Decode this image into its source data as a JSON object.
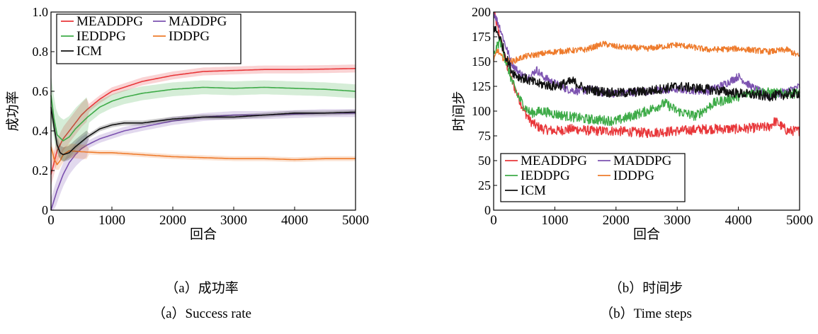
{
  "colors": {
    "MEADDPG": "#e8373a",
    "MADDPG": "#7c52b0",
    "IEDDPG": "#3eab48",
    "IDDPG": "#ee7b2c",
    "ICM": "#111111"
  },
  "chart_data": [
    {
      "type": "line",
      "title": "",
      "xlabel": "回合",
      "ylabel": "成功率",
      "xlim": [
        0,
        5000
      ],
      "ylim": [
        0,
        1.0
      ],
      "xticks": [
        0,
        1000,
        2000,
        3000,
        4000,
        5000
      ],
      "yticks": [
        0,
        0.2,
        0.4,
        0.6,
        0.8,
        1.0
      ],
      "ytick_labels": [
        "0",
        "0.2",
        "0.4",
        "0.6",
        "0.8",
        "1.0"
      ],
      "legend": {
        "location": "top-left",
        "columns": 2,
        "entries": [
          "MEADDPG",
          "MADDPG",
          "IEDDPG",
          "IDDPG",
          "ICM"
        ]
      },
      "series": [
        {
          "name": "MEADDPG",
          "band": 0.02,
          "x": [
            0,
            100,
            200,
            300,
            400,
            500,
            600,
            800,
            1000,
            1200,
            1500,
            2000,
            2500,
            3000,
            3500,
            4000,
            4500,
            5000
          ],
          "y": [
            0.18,
            0.3,
            0.36,
            0.4,
            0.44,
            0.48,
            0.51,
            0.56,
            0.6,
            0.62,
            0.65,
            0.68,
            0.7,
            0.705,
            0.71,
            0.71,
            0.712,
            0.715
          ]
        },
        {
          "name": "MADDPG",
          "band": 0.02,
          "x": [
            0,
            100,
            200,
            300,
            400,
            500,
            600,
            800,
            1000,
            1200,
            1500,
            2000,
            2500,
            3000,
            3500,
            4000,
            4500,
            5000
          ],
          "y": [
            0.0,
            0.1,
            0.18,
            0.24,
            0.28,
            0.31,
            0.33,
            0.36,
            0.38,
            0.4,
            0.42,
            0.45,
            0.47,
            0.48,
            0.48,
            0.485,
            0.49,
            0.49
          ]
        },
        {
          "name": "IEDDPG",
          "band": 0.035,
          "x": [
            0,
            50,
            100,
            200,
            300,
            400,
            500,
            600,
            800,
            1000,
            1200,
            1500,
            2000,
            2500,
            3000,
            3500,
            4000,
            4500,
            5000
          ],
          "y": [
            0.58,
            0.46,
            0.38,
            0.35,
            0.37,
            0.41,
            0.44,
            0.47,
            0.52,
            0.55,
            0.57,
            0.59,
            0.61,
            0.62,
            0.615,
            0.62,
            0.615,
            0.61,
            0.6
          ]
        },
        {
          "name": "IDDPG",
          "band": 0.012,
          "x": [
            0,
            50,
            100,
            150,
            200,
            300,
            500,
            800,
            1000,
            1500,
            2000,
            2500,
            3000,
            3500,
            4000,
            4500,
            5000
          ],
          "y": [
            0.32,
            0.26,
            0.23,
            0.25,
            0.28,
            0.3,
            0.295,
            0.29,
            0.29,
            0.28,
            0.27,
            0.265,
            0.26,
            0.26,
            0.255,
            0.26,
            0.26
          ]
        },
        {
          "name": "ICM",
          "band": 0.012,
          "x": [
            0,
            50,
            100,
            150,
            200,
            300,
            400,
            600,
            800,
            1000,
            1200,
            1500,
            2000,
            2500,
            3000,
            3500,
            4000,
            4500,
            5000
          ],
          "y": [
            0.52,
            0.42,
            0.33,
            0.29,
            0.28,
            0.29,
            0.32,
            0.37,
            0.41,
            0.43,
            0.44,
            0.44,
            0.46,
            0.47,
            0.47,
            0.48,
            0.49,
            0.49,
            0.495
          ]
        }
      ]
    },
    {
      "type": "line",
      "title": "",
      "xlabel": "回合",
      "ylabel": "时间步",
      "xlim": [
        0,
        5000
      ],
      "ylim": [
        0,
        200
      ],
      "xticks": [
        0,
        1000,
        2000,
        3000,
        4000,
        5000
      ],
      "yticks": [
        0,
        25,
        50,
        75,
        100,
        125,
        150,
        175,
        200
      ],
      "ytick_labels": [
        "0",
        "25",
        "50",
        "75",
        "100",
        "125",
        "150",
        "175",
        "200"
      ],
      "legend": {
        "location": "bottom-left",
        "columns": 2,
        "entries": [
          "MEADDPG",
          "MADDPG",
          "IEDDPG",
          "IDDPG",
          "ICM"
        ]
      },
      "series": [
        {
          "name": "MEADDPG",
          "noise": 5,
          "x": [
            0,
            100,
            200,
            300,
            400,
            500,
            600,
            700,
            800,
            1000,
            1300,
            1600,
            2000,
            2500,
            3000,
            3500,
            4000,
            4500,
            4600,
            4800,
            5000
          ],
          "y": [
            200,
            175,
            150,
            130,
            115,
            100,
            90,
            85,
            82,
            80,
            82,
            80,
            80,
            78,
            80,
            82,
            82,
            84,
            90,
            80,
            80
          ]
        },
        {
          "name": "MADDPG",
          "noise": 4,
          "x": [
            0,
            100,
            200,
            300,
            400,
            500,
            600,
            700,
            800,
            1000,
            1200,
            1400,
            1600,
            1800,
            2000,
            2500,
            3000,
            3500,
            3800,
            4000,
            4200,
            4500,
            4800,
            5000
          ],
          "y": [
            200,
            185,
            165,
            148,
            140,
            135,
            135,
            142,
            135,
            128,
            122,
            120,
            122,
            118,
            118,
            120,
            122,
            120,
            128,
            135,
            125,
            115,
            120,
            125
          ]
        },
        {
          "name": "IEDDPG",
          "noise": 5,
          "x": [
            0,
            100,
            200,
            300,
            400,
            500,
            600,
            800,
            1000,
            1200,
            1500,
            2000,
            2500,
            2800,
            3000,
            3300,
            3600,
            4000,
            4300,
            4600,
            5000
          ],
          "y": [
            155,
            172,
            150,
            130,
            115,
            105,
            98,
            100,
            97,
            95,
            92,
            90,
            100,
            108,
            100,
            95,
            108,
            115,
            120,
            118,
            118
          ]
        },
        {
          "name": "IDDPG",
          "noise": 3,
          "x": [
            0,
            60,
            120,
            200,
            300,
            500,
            800,
            1000,
            1500,
            1800,
            2000,
            2500,
            3000,
            3500,
            4000,
            4500,
            4800,
            5000
          ],
          "y": [
            150,
            162,
            155,
            152,
            150,
            155,
            158,
            160,
            162,
            168,
            165,
            163,
            167,
            162,
            163,
            160,
            162,
            155
          ]
        },
        {
          "name": "ICM",
          "noise": 5,
          "x": [
            0,
            100,
            200,
            300,
            400,
            500,
            700,
            1000,
            1300,
            1500,
            2000,
            2500,
            3000,
            3500,
            4000,
            4500,
            5000
          ],
          "y": [
            185,
            175,
            155,
            140,
            135,
            133,
            128,
            125,
            130,
            122,
            118,
            120,
            125,
            122,
            118,
            115,
            118
          ]
        }
      ]
    }
  ],
  "captions": {
    "a_cn": "（a）成功率",
    "a_en": "（a）Success rate",
    "b_cn": "（b）时间步",
    "b_en": "（b）Time steps"
  }
}
